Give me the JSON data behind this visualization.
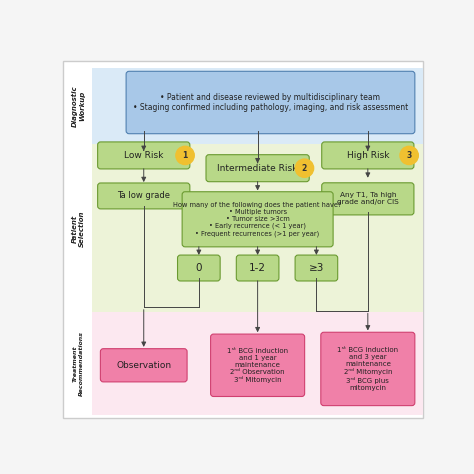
{
  "bg_color": "#f5f5f5",
  "frame_color": "#ffffff",
  "section_colors": {
    "diagnostic": "#daeaf7",
    "patient": "#edf3d8",
    "treatment": "#fce8f0"
  },
  "section_labels": {
    "diagnostic": "Diagnostic\nWorkup",
    "patient": "Patient\nSelection",
    "treatment": "Treatment\nRecommendations"
  },
  "box_colors": {
    "blue": "#a8c8e8",
    "green": "#b8d888",
    "pink": "#f080a8",
    "yellow_circle": "#f0c030"
  },
  "arrow_color": "#444444",
  "text_color": "#222222",
  "green_border": "#6a9a30",
  "blue_border": "#5080b0",
  "pink_border": "#d04070"
}
